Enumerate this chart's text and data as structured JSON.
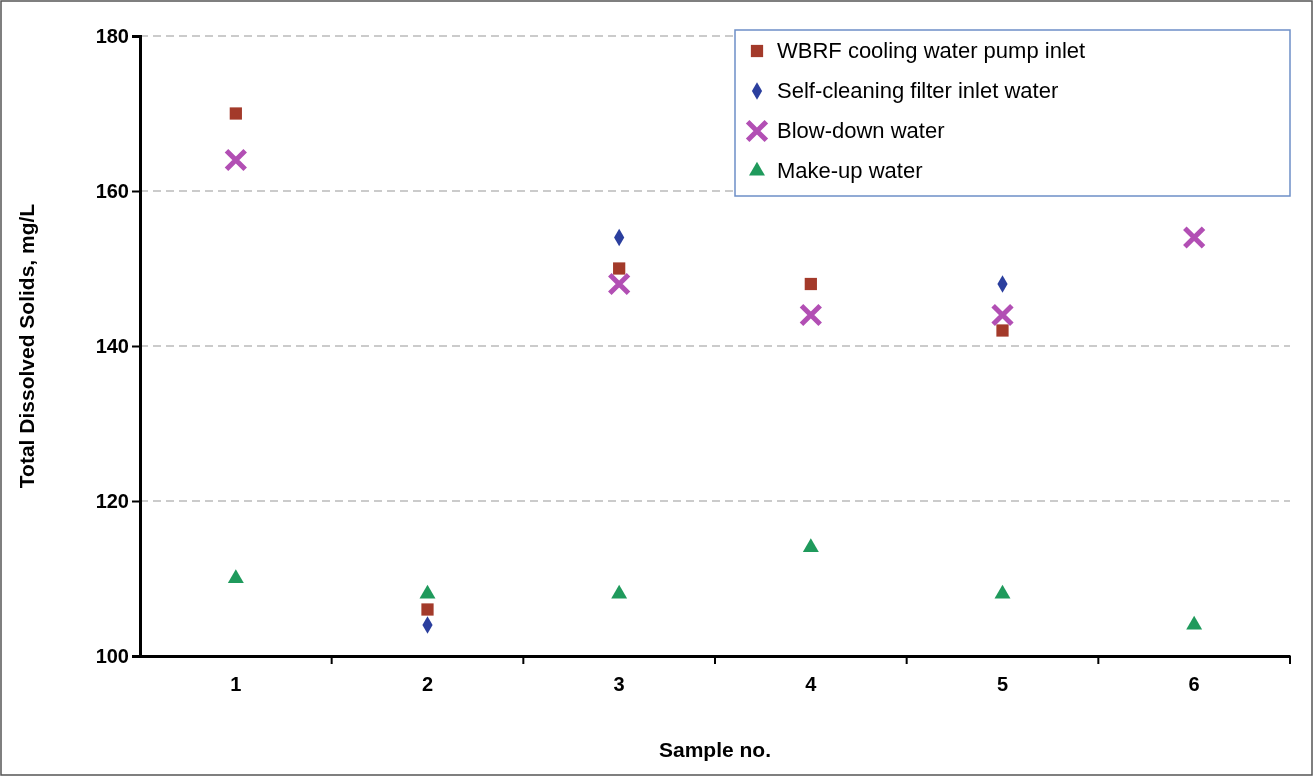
{
  "chart_data": {
    "type": "scatter",
    "xlabel": "Sample no.",
    "ylabel": "Total Dissolved Solids, mg/L",
    "categories": [
      "1",
      "2",
      "3",
      "4",
      "5",
      "6"
    ],
    "series": [
      {
        "name": "WBRF cooling water pump inlet",
        "color": "#a33a2a",
        "marker": "square",
        "values": [
          170,
          106,
          150,
          148,
          142,
          null
        ]
      },
      {
        "name": "Self-cleaning filter inlet water",
        "color": "#2b3f9e",
        "marker": "diamond",
        "values": [
          null,
          104,
          154,
          null,
          148,
          null
        ]
      },
      {
        "name": "Blow-down water",
        "color": "#b24fb4",
        "marker": "cross",
        "values": [
          164,
          null,
          148,
          144,
          144,
          154
        ]
      },
      {
        "name": "Make-up water",
        "color": "#1f9a5c",
        "marker": "triangle",
        "values": [
          110,
          108,
          108,
          114,
          108,
          104
        ]
      }
    ],
    "ylim": [
      100,
      180
    ],
    "yticks": [
      100,
      120,
      140,
      160,
      180
    ],
    "grid": "y",
    "legend": "top right"
  }
}
